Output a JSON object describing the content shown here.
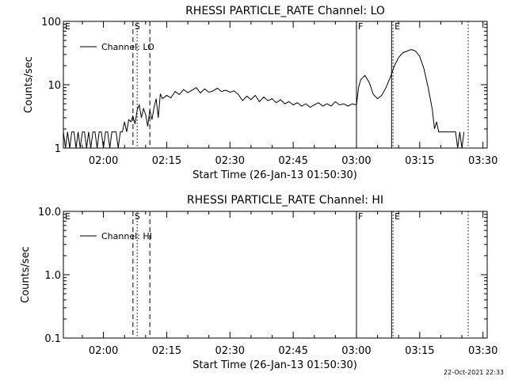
{
  "chart_data": [
    {
      "type": "line",
      "title": "RHESSI PARTICLE_RATE Channel: LO",
      "xlabel": "Start Time (26-Jan-13 01:50:30)",
      "ylabel": "Counts/sec",
      "yscale": "log",
      "xlim": [
        "01:50:30",
        "03:31:00"
      ],
      "ylim": [
        1,
        100
      ],
      "x_tick_labels": [
        "02:00",
        "02:15",
        "02:30",
        "02:45",
        "03:00",
        "03:15",
        "03:30"
      ],
      "y_tick_labels": [
        "1",
        "10",
        "100"
      ],
      "legend": {
        "label": "Channel: LO",
        "position": "top-left"
      },
      "markers": [
        {
          "label": "E",
          "time": "01:50:30",
          "style": "none"
        },
        {
          "label": "S",
          "time": "02:07:00",
          "style": "dashed"
        },
        {
          "label": "",
          "time": "02:08:00",
          "style": "dotted"
        },
        {
          "label": "",
          "time": "02:11:00",
          "style": "dashed"
        },
        {
          "label": "F",
          "time": "03:00:00",
          "style": "solid"
        },
        {
          "label": "",
          "time": "03:08:20",
          "style": "solid"
        },
        {
          "label": "E",
          "time": "03:08:40",
          "style": "dotted"
        },
        {
          "label": "",
          "time": "03:26:30",
          "style": "dotted"
        }
      ],
      "series": [
        {
          "name": "Channel: LO",
          "points": [
            [
              "01:50:30",
              1.8
            ],
            [
              "01:51:00",
              1.0
            ],
            [
              "01:51:30",
              1.8
            ],
            [
              "01:52:00",
              1.0
            ],
            [
              "01:52:30",
              1.8
            ],
            [
              "01:53:00",
              1.8
            ],
            [
              "01:53:30",
              1.0
            ],
            [
              "01:54:00",
              1.8
            ],
            [
              "01:54:30",
              1.0
            ],
            [
              "01:55:00",
              1.8
            ],
            [
              "01:55:30",
              1.8
            ],
            [
              "01:56:00",
              1.0
            ],
            [
              "01:56:30",
              1.8
            ],
            [
              "01:57:00",
              1.0
            ],
            [
              "01:57:30",
              1.8
            ],
            [
              "01:58:00",
              1.8
            ],
            [
              "01:58:30",
              1.0
            ],
            [
              "01:59:00",
              1.8
            ],
            [
              "01:59:30",
              1.8
            ],
            [
              "02:00:00",
              1.0
            ],
            [
              "02:00:30",
              1.8
            ],
            [
              "02:01:00",
              1.8
            ],
            [
              "02:01:30",
              1.0
            ],
            [
              "02:02:00",
              1.8
            ],
            [
              "02:02:30",
              1.8
            ],
            [
              "02:03:00",
              1.8
            ],
            [
              "02:03:30",
              1.0
            ],
            [
              "02:04:00",
              1.8
            ],
            [
              "02:04:30",
              1.8
            ],
            [
              "02:05:00",
              2.6
            ],
            [
              "02:05:30",
              1.8
            ],
            [
              "02:06:00",
              2.8
            ],
            [
              "02:06:30",
              2.6
            ],
            [
              "02:07:00",
              3.2
            ],
            [
              "02:07:30",
              2.4
            ],
            [
              "02:08:00",
              4.0
            ],
            [
              "02:08:30",
              4.8
            ],
            [
              "02:09:00",
              3.0
            ],
            [
              "02:09:30",
              4.2
            ],
            [
              "02:10:00",
              3.4
            ],
            [
              "02:10:30",
              2.2
            ],
            [
              "02:11:00",
              4.0
            ],
            [
              "02:11:30",
              2.8
            ],
            [
              "02:12:00",
              4.4
            ],
            [
              "02:12:30",
              6.0
            ],
            [
              "02:13:00",
              3.0
            ],
            [
              "02:13:30",
              7.2
            ],
            [
              "02:14:00",
              6.0
            ],
            [
              "02:15:00",
              6.8
            ],
            [
              "02:16:00",
              6.2
            ],
            [
              "02:17:00",
              7.8
            ],
            [
              "02:18:00",
              7.0
            ],
            [
              "02:19:00",
              8.4
            ],
            [
              "02:20:00",
              7.5
            ],
            [
              "02:21:00",
              8.2
            ],
            [
              "02:22:00",
              9.0
            ],
            [
              "02:23:00",
              7.4
            ],
            [
              "02:24:00",
              8.6
            ],
            [
              "02:25:00",
              7.6
            ],
            [
              "02:26:00",
              8.0
            ],
            [
              "02:27:00",
              8.8
            ],
            [
              "02:28:00",
              7.8
            ],
            [
              "02:29:00",
              8.2
            ],
            [
              "02:30:00",
              7.6
            ],
            [
              "02:31:00",
              8.0
            ],
            [
              "02:32:00",
              7.0
            ],
            [
              "02:33:00",
              5.6
            ],
            [
              "02:34:00",
              6.6
            ],
            [
              "02:35:00",
              5.8
            ],
            [
              "02:36:00",
              6.8
            ],
            [
              "02:37:00",
              5.4
            ],
            [
              "02:38:00",
              6.4
            ],
            [
              "02:39:00",
              5.6
            ],
            [
              "02:40:00",
              6.0
            ],
            [
              "02:41:00",
              5.2
            ],
            [
              "02:42:00",
              5.8
            ],
            [
              "02:43:00",
              5.0
            ],
            [
              "02:44:00",
              5.4
            ],
            [
              "02:45:00",
              4.8
            ],
            [
              "02:46:00",
              5.2
            ],
            [
              "02:47:00",
              4.6
            ],
            [
              "02:48:00",
              5.0
            ],
            [
              "02:49:00",
              4.4
            ],
            [
              "02:50:00",
              4.8
            ],
            [
              "02:51:00",
              5.2
            ],
            [
              "02:52:00",
              4.6
            ],
            [
              "02:53:00",
              5.0
            ],
            [
              "02:54:00",
              4.6
            ],
            [
              "02:55:00",
              5.4
            ],
            [
              "02:56:00",
              4.8
            ],
            [
              "02:57:00",
              5.0
            ],
            [
              "02:58:00",
              4.6
            ],
            [
              "02:59:00",
              5.0
            ],
            [
              "03:00:00",
              4.8
            ],
            [
              "03:00:30",
              9.0
            ],
            [
              "03:01:00",
              12.0
            ],
            [
              "03:02:00",
              14.0
            ],
            [
              "03:03:00",
              11.0
            ],
            [
              "03:04:00",
              7.0
            ],
            [
              "03:05:00",
              6.0
            ],
            [
              "03:06:00",
              6.8
            ],
            [
              "03:07:00",
              9.0
            ],
            [
              "03:08:00",
              13.0
            ],
            [
              "03:09:00",
              20.0
            ],
            [
              "03:10:00",
              27.0
            ],
            [
              "03:11:00",
              32.0
            ],
            [
              "03:12:00",
              34.0
            ],
            [
              "03:13:00",
              36.0
            ],
            [
              "03:14:00",
              34.0
            ],
            [
              "03:15:00",
              28.0
            ],
            [
              "03:16:00",
              18.0
            ],
            [
              "03:17:00",
              9.0
            ],
            [
              "03:18:00",
              4.0
            ],
            [
              "03:18:30",
              2.0
            ],
            [
              "03:19:00",
              2.6
            ],
            [
              "03:19:30",
              1.8
            ],
            [
              "03:20:30",
              1.8
            ],
            [
              "03:21:30",
              1.8
            ],
            [
              "03:22:30",
              1.8
            ],
            [
              "03:23:30",
              1.8
            ],
            [
              "03:24:00",
              1.0
            ],
            [
              "03:24:30",
              1.8
            ],
            [
              "03:25:00",
              1.0
            ],
            [
              "03:25:30",
              1.8
            ]
          ]
        }
      ]
    },
    {
      "type": "line",
      "title": "RHESSI PARTICLE_RATE Channel: HI",
      "xlabel": "Start Time (26-Jan-13 01:50:30)",
      "ylabel": "Counts/sec",
      "yscale": "log",
      "xlim": [
        "01:50:30",
        "03:31:00"
      ],
      "ylim": [
        0.1,
        10.0
      ],
      "x_tick_labels": [
        "02:00",
        "02:15",
        "02:30",
        "02:45",
        "03:00",
        "03:15",
        "03:30"
      ],
      "y_tick_labels": [
        "0.1",
        "1.0",
        "10.0"
      ],
      "legend": {
        "label": "Channel: HI",
        "position": "top-left"
      },
      "markers": [
        {
          "label": "E",
          "time": "01:50:30",
          "style": "none"
        },
        {
          "label": "S",
          "time": "02:07:00",
          "style": "dashed"
        },
        {
          "label": "",
          "time": "02:08:00",
          "style": "dotted"
        },
        {
          "label": "",
          "time": "02:11:00",
          "style": "dashed"
        },
        {
          "label": "F",
          "time": "03:00:00",
          "style": "solid"
        },
        {
          "label": "",
          "time": "03:08:20",
          "style": "solid"
        },
        {
          "label": "E",
          "time": "03:08:40",
          "style": "dotted"
        },
        {
          "label": "",
          "time": "03:26:30",
          "style": "dotted"
        }
      ],
      "series": [
        {
          "name": "Channel: HI",
          "points": []
        }
      ]
    }
  ],
  "footer": {
    "timestamp": "22-Oct-2021 22:33"
  }
}
